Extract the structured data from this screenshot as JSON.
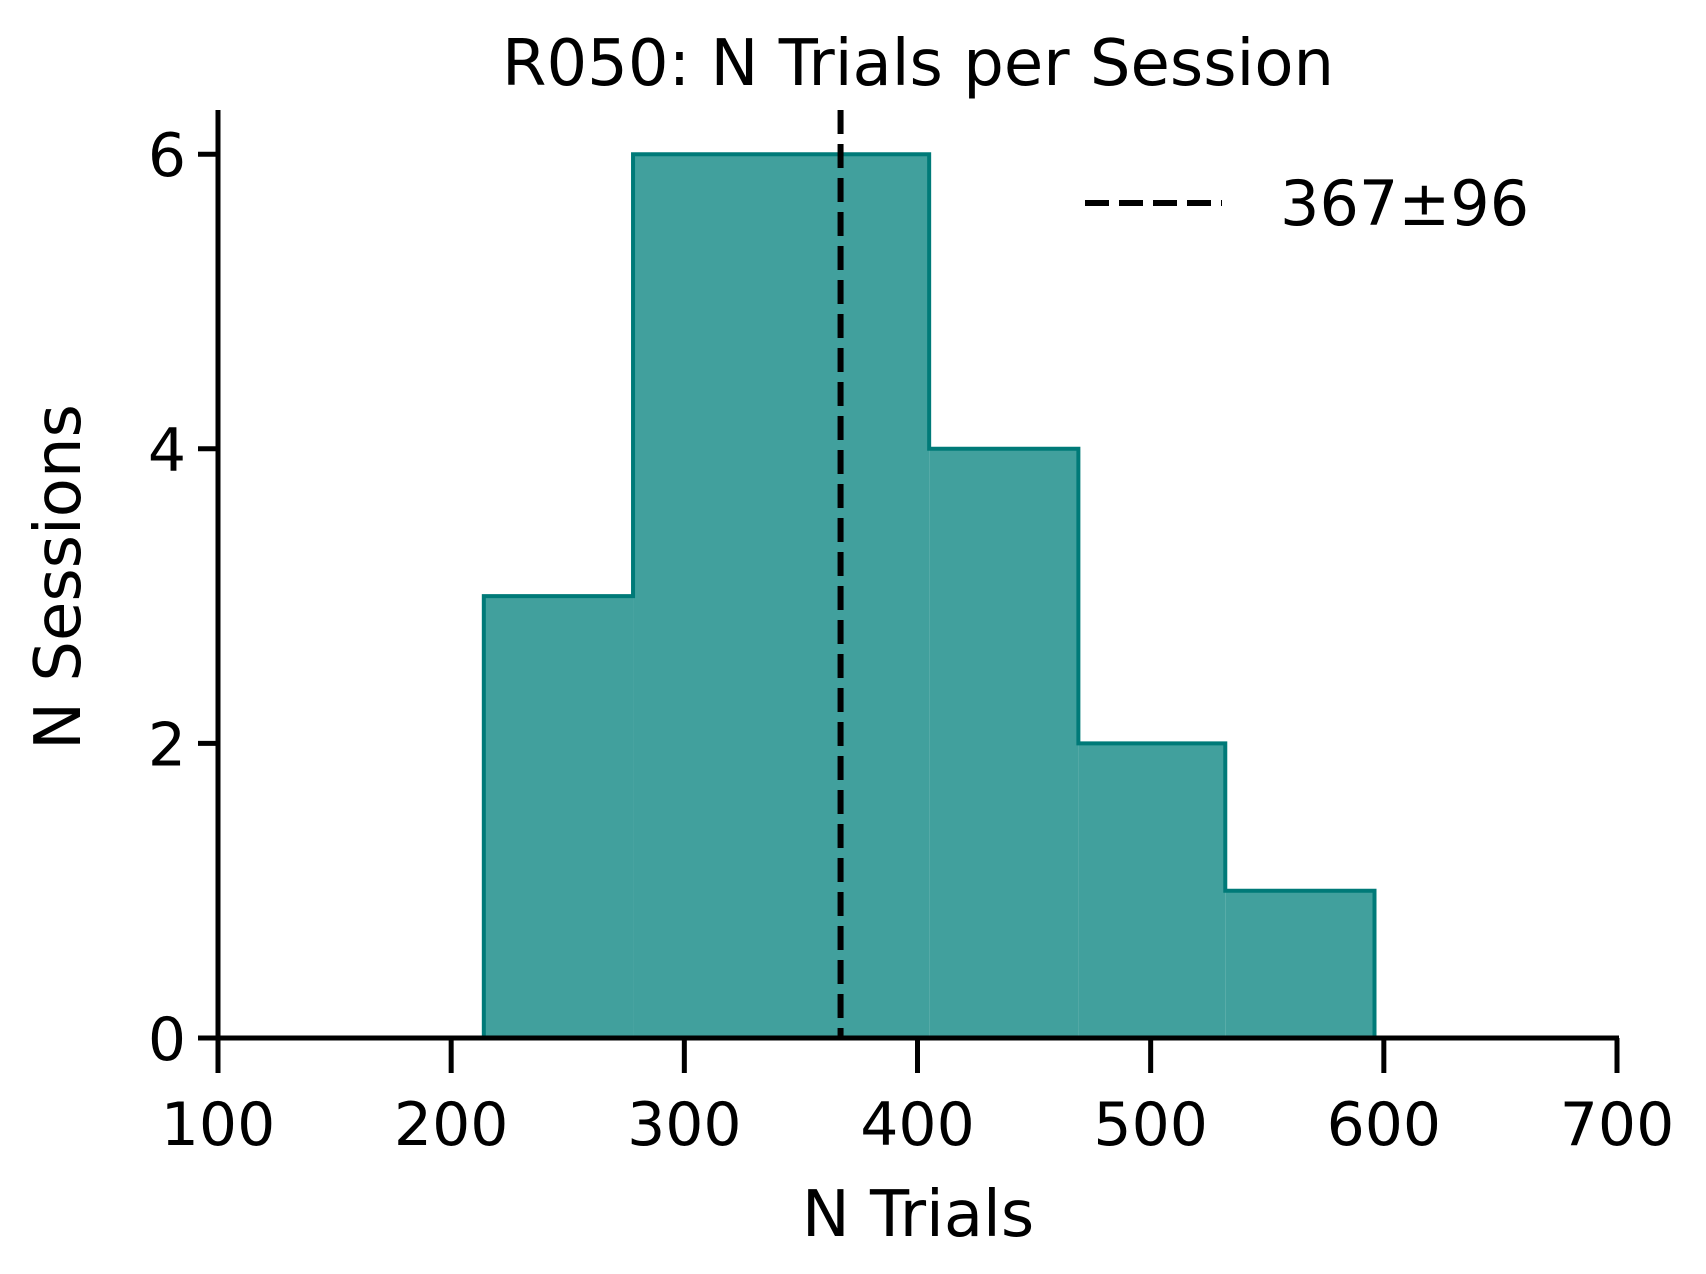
{
  "chart_data": {
    "type": "bar",
    "title": "R050: N Trials per Session",
    "xlabel": "N Trials",
    "ylabel": "N Sessions",
    "xlim": [
      100,
      700
    ],
    "ylim": [
      0,
      6.3
    ],
    "xticks": [
      100,
      200,
      300,
      400,
      500,
      600,
      700
    ],
    "yticks": [
      0,
      2,
      4,
      6
    ],
    "grid": false,
    "legend_position": "top-right",
    "bins": [
      {
        "x0": 214,
        "x1": 278,
        "count": 3
      },
      {
        "x0": 278,
        "x1": 405,
        "count": 6
      },
      {
        "x0": 405,
        "x1": 469,
        "count": 4
      },
      {
        "x0": 469,
        "x1": 532,
        "count": 2
      },
      {
        "x0": 532,
        "x1": 596,
        "count": 1
      }
    ],
    "reference_line": {
      "x": 367,
      "style": "dashed",
      "label": "367±96"
    },
    "colors": {
      "fill": "#41a09d",
      "edge": "#007a78",
      "line": "#000000"
    }
  }
}
